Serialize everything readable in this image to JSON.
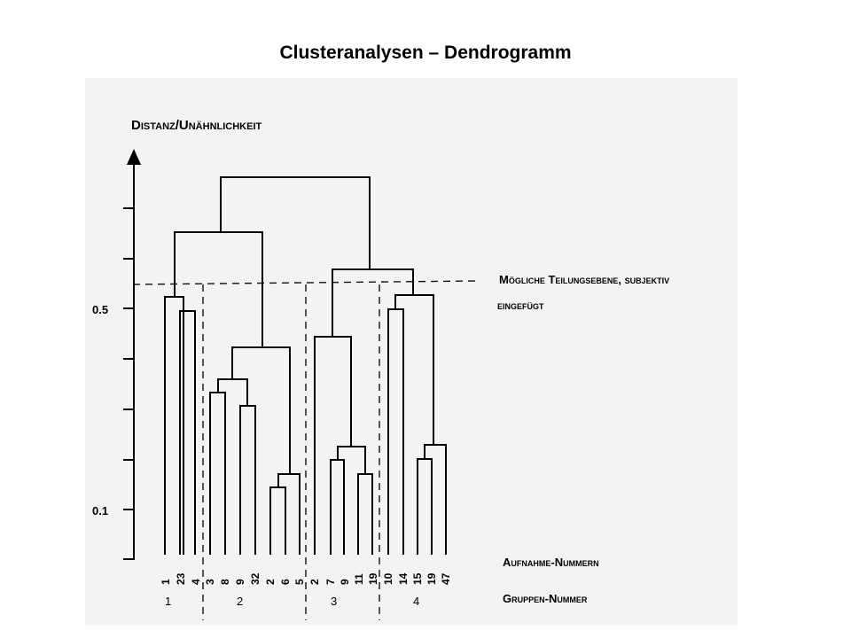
{
  "title": "Clusteranalysen – Dendrogramm",
  "axis": {
    "label": "Distanz/Unähnlichkeit",
    "ticks": [
      {
        "value": 0.5,
        "label": "0.5"
      },
      {
        "value": 0.1,
        "label": "0.1"
      }
    ]
  },
  "annotations": {
    "cut_line_label_1": "Mögliche Teilungsebene, subjektiv",
    "cut_line_label_2": "eingefügt",
    "leaves_row_label": "Aufnahme-Nummern",
    "groups_row_label": "Gruppen-Nummer"
  },
  "leaves": [
    "1",
    "23",
    "4",
    "3",
    "8",
    "9",
    "32",
    "2",
    "6",
    "5",
    "2",
    "7",
    "9",
    "11",
    "19",
    "10",
    "14",
    "15",
    "19",
    "47"
  ],
  "groups": [
    "1",
    "2",
    "3",
    "4"
  ],
  "colors": {
    "line": "#000000",
    "scan_background": "#f3f3f3",
    "page_background": "#ffffff"
  }
}
